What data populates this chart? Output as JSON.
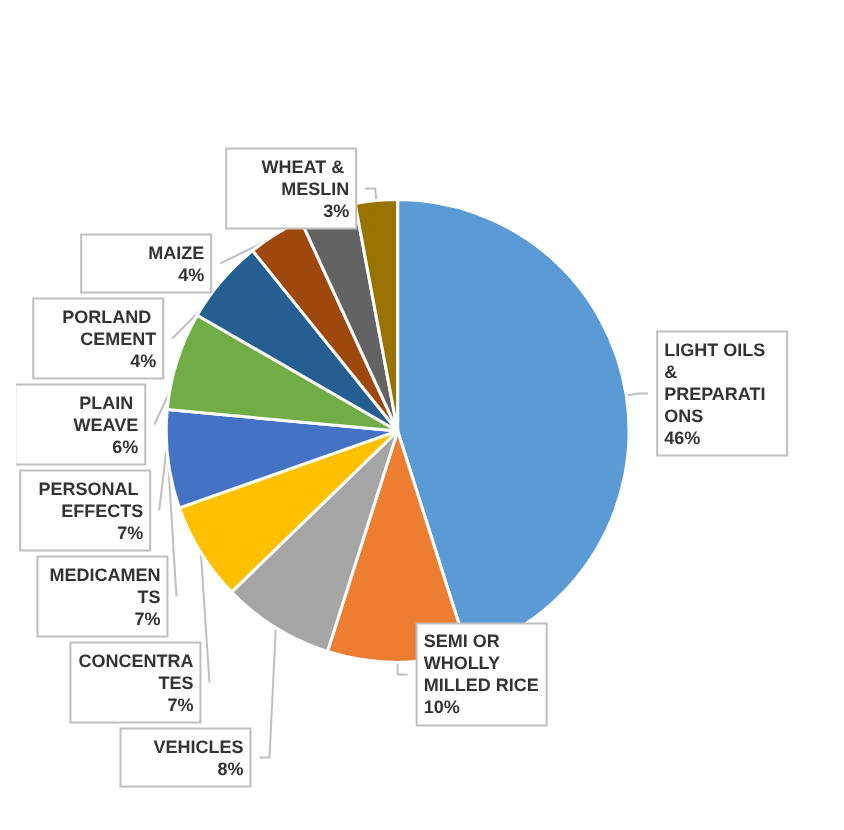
{
  "chart_data": {
    "type": "pie",
    "categories": [
      "LIGHT OILS & PREPARATIONS",
      "SEMI OR WHOLLY MILLED RICE",
      "VEHICLES",
      "CONCENTRATES",
      "MEDICAMENTS",
      "PERSONAL EFFECTS",
      "PLAIN WEAVE",
      "PORLAND CEMENT",
      "MAIZE",
      "WHEAT & MESLIN"
    ],
    "values": [
      46,
      10,
      8,
      7,
      7,
      7,
      6,
      4,
      4,
      3
    ],
    "value_labels": [
      "46%",
      "10%",
      "8%",
      "7%",
      "7%",
      "7%",
      "6%",
      "4%",
      "4%",
      "3%"
    ],
    "colors": [
      "#5b9bd5",
      "#ed7d31",
      "#a5a5a5",
      "#ffc000",
      "#4472c4",
      "#70ad47",
      "#255e91",
      "#9e480e",
      "#636363",
      "#997300"
    ],
    "legend": false
  }
}
